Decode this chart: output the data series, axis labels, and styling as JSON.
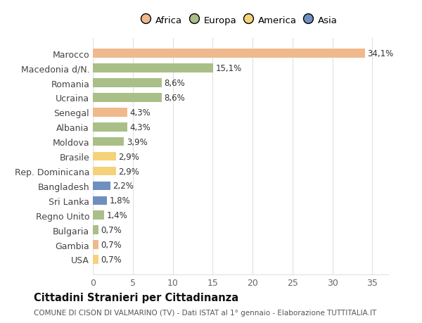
{
  "countries": [
    "Marocco",
    "Macedonia d/N.",
    "Romania",
    "Ucraina",
    "Senegal",
    "Albania",
    "Moldova",
    "Brasile",
    "Rep. Dominicana",
    "Bangladesh",
    "Sri Lanka",
    "Regno Unito",
    "Bulgaria",
    "Gambia",
    "USA"
  ],
  "values": [
    34.1,
    15.1,
    8.6,
    8.6,
    4.3,
    4.3,
    3.9,
    2.9,
    2.9,
    2.2,
    1.8,
    1.4,
    0.7,
    0.7,
    0.7
  ],
  "labels": [
    "34,1%",
    "15,1%",
    "8,6%",
    "8,6%",
    "4,3%",
    "4,3%",
    "3,9%",
    "2,9%",
    "2,9%",
    "2,2%",
    "1,8%",
    "1,4%",
    "0,7%",
    "0,7%",
    "0,7%"
  ],
  "colors": [
    "#F0B98D",
    "#AABF88",
    "#AABF88",
    "#AABF88",
    "#F0B98D",
    "#AABF88",
    "#AABF88",
    "#F5D27A",
    "#F5D27A",
    "#6F8FBF",
    "#6F8FBF",
    "#AABF88",
    "#AABF88",
    "#F0B98D",
    "#F5D27A"
  ],
  "legend_names": [
    "Africa",
    "Europa",
    "America",
    "Asia"
  ],
  "legend_colors": [
    "#F0B98D",
    "#AABF88",
    "#F5D27A",
    "#6F8FBF"
  ],
  "title": "Cittadini Stranieri per Cittadinanza",
  "subtitle": "COMUNE DI CISON DI VALMARINO (TV) - Dati ISTAT al 1° gennaio - Elaborazione TUTTITALIA.IT",
  "xlim": [
    0,
    37
  ],
  "xticks": [
    0,
    5,
    10,
    15,
    20,
    25,
    30,
    35
  ],
  "bg_color": "#FFFFFF",
  "grid_color": "#E0E0E0"
}
